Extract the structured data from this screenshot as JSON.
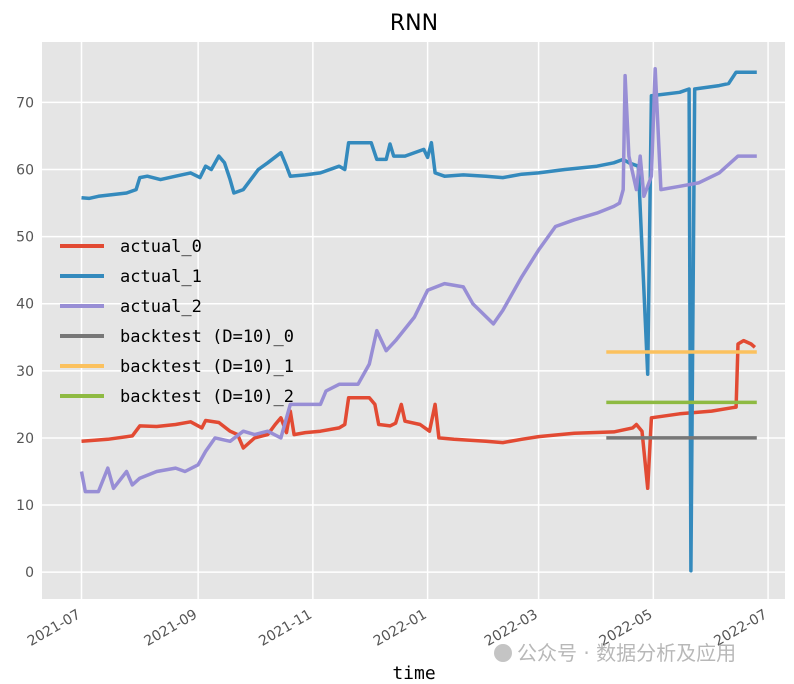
{
  "chart_data": {
    "type": "line",
    "title": "RNN",
    "xlabel": "time",
    "ylabel": "",
    "ylim": [
      -4,
      79
    ],
    "xlim": [
      "2021-06-10",
      "2022-07-10"
    ],
    "x_ticks": [
      "2021-07",
      "2021-09",
      "2021-11",
      "2022-01",
      "2022-03",
      "2022-05",
      "2022-07"
    ],
    "y_ticks": [
      0,
      10,
      20,
      30,
      40,
      50,
      60,
      70
    ],
    "grid": true,
    "legend_position": "center-left",
    "series": [
      {
        "name": "actual_0",
        "color": "#E24A33",
        "points": [
          [
            "2021-07-01",
            19.5
          ],
          [
            "2021-07-15",
            19.8
          ],
          [
            "2021-07-28",
            20.3
          ],
          [
            "2021-08-01",
            21.8
          ],
          [
            "2021-08-10",
            21.7
          ],
          [
            "2021-08-20",
            22.0
          ],
          [
            "2021-08-28",
            22.4
          ],
          [
            "2021-09-03",
            21.5
          ],
          [
            "2021-09-05",
            22.6
          ],
          [
            "2021-09-12",
            22.3
          ],
          [
            "2021-09-18",
            21.0
          ],
          [
            "2021-09-22",
            20.5
          ],
          [
            "2021-09-25",
            18.5
          ],
          [
            "2021-10-01",
            20.0
          ],
          [
            "2021-10-08",
            20.5
          ],
          [
            "2021-10-12",
            22.0
          ],
          [
            "2021-10-15",
            23.0
          ],
          [
            "2021-10-18",
            20.8
          ],
          [
            "2021-10-20",
            24.0
          ],
          [
            "2021-10-22",
            20.5
          ],
          [
            "2021-10-28",
            20.8
          ],
          [
            "2021-11-05",
            21.0
          ],
          [
            "2021-11-15",
            21.5
          ],
          [
            "2021-11-18",
            22.0
          ],
          [
            "2021-11-20",
            26.0
          ],
          [
            "2021-12-01",
            26.0
          ],
          [
            "2021-12-04",
            25.0
          ],
          [
            "2021-12-06",
            22.0
          ],
          [
            "2021-12-12",
            21.8
          ],
          [
            "2021-12-15",
            22.2
          ],
          [
            "2021-12-18",
            25.0
          ],
          [
            "2021-12-20",
            22.5
          ],
          [
            "2021-12-28",
            22.0
          ],
          [
            "2022-01-02",
            21.0
          ],
          [
            "2022-01-05",
            25.0
          ],
          [
            "2022-01-07",
            20.0
          ],
          [
            "2022-01-15",
            19.8
          ],
          [
            "2022-02-01",
            19.5
          ],
          [
            "2022-02-10",
            19.3
          ],
          [
            "2022-02-20",
            19.8
          ],
          [
            "2022-03-01",
            20.2
          ],
          [
            "2022-03-20",
            20.7
          ],
          [
            "2022-04-10",
            20.9
          ],
          [
            "2022-04-20",
            21.5
          ],
          [
            "2022-04-22",
            22.0
          ],
          [
            "2022-04-25",
            21.0
          ],
          [
            "2022-04-28",
            12.5
          ],
          [
            "2022-04-30",
            23.0
          ],
          [
            "2022-05-15",
            23.6
          ],
          [
            "2022-06-01",
            24.0
          ],
          [
            "2022-06-12",
            24.5
          ],
          [
            "2022-06-14",
            24.6
          ],
          [
            "2022-06-15",
            34.0
          ],
          [
            "2022-06-18",
            34.5
          ],
          [
            "2022-06-22",
            34.0
          ],
          [
            "2022-06-24",
            33.5
          ]
        ]
      },
      {
        "name": "actual_1",
        "color": "#348ABD",
        "points": [
          [
            "2021-07-01",
            55.8
          ],
          [
            "2021-07-05",
            55.7
          ],
          [
            "2021-07-10",
            56.0
          ],
          [
            "2021-07-25",
            56.5
          ],
          [
            "2021-07-30",
            57.0
          ],
          [
            "2021-08-01",
            58.8
          ],
          [
            "2021-08-05",
            59.0
          ],
          [
            "2021-08-12",
            58.5
          ],
          [
            "2021-08-20",
            59.0
          ],
          [
            "2021-08-28",
            59.5
          ],
          [
            "2021-09-02",
            58.8
          ],
          [
            "2021-09-05",
            60.5
          ],
          [
            "2021-09-08",
            60.0
          ],
          [
            "2021-09-12",
            62.0
          ],
          [
            "2021-09-15",
            61.0
          ],
          [
            "2021-09-18",
            58.5
          ],
          [
            "2021-09-20",
            56.5
          ],
          [
            "2021-09-25",
            57.0
          ],
          [
            "2021-10-03",
            60.0
          ],
          [
            "2021-10-08",
            61.0
          ],
          [
            "2021-10-15",
            62.5
          ],
          [
            "2021-10-18",
            60.5
          ],
          [
            "2021-10-20",
            59.0
          ],
          [
            "2021-10-28",
            59.2
          ],
          [
            "2021-11-05",
            59.5
          ],
          [
            "2021-11-15",
            60.5
          ],
          [
            "2021-11-18",
            60.0
          ],
          [
            "2021-11-20",
            64.0
          ],
          [
            "2021-12-02",
            64.0
          ],
          [
            "2021-12-05",
            61.5
          ],
          [
            "2021-12-10",
            61.5
          ],
          [
            "2021-12-12",
            63.8
          ],
          [
            "2021-12-14",
            62.0
          ],
          [
            "2021-12-20",
            62.0
          ],
          [
            "2021-12-30",
            63.0
          ],
          [
            "2022-01-01",
            61.8
          ],
          [
            "2022-01-03",
            64.0
          ],
          [
            "2022-01-05",
            59.5
          ],
          [
            "2022-01-10",
            59.0
          ],
          [
            "2022-01-20",
            59.2
          ],
          [
            "2022-02-01",
            59.0
          ],
          [
            "2022-02-10",
            58.8
          ],
          [
            "2022-02-20",
            59.3
          ],
          [
            "2022-03-01",
            59.5
          ],
          [
            "2022-03-15",
            60.0
          ],
          [
            "2022-04-01",
            60.5
          ],
          [
            "2022-04-10",
            61.0
          ],
          [
            "2022-04-15",
            61.5
          ],
          [
            "2022-04-18",
            61.0
          ],
          [
            "2022-04-23",
            60.5
          ],
          [
            "2022-04-28",
            29.5
          ],
          [
            "2022-04-30",
            71.0
          ],
          [
            "2022-05-15",
            71.5
          ],
          [
            "2022-05-20",
            72.0
          ],
          [
            "2022-05-21",
            0.2
          ],
          [
            "2022-05-23",
            72.0
          ],
          [
            "2022-06-05",
            72.5
          ],
          [
            "2022-06-10",
            72.8
          ],
          [
            "2022-06-14",
            74.5
          ],
          [
            "2022-06-25",
            74.5
          ]
        ]
      },
      {
        "name": "actual_2",
        "color": "#988ED5",
        "points": [
          [
            "2021-07-01",
            15.0
          ],
          [
            "2021-07-03",
            12.0
          ],
          [
            "2021-07-10",
            12.0
          ],
          [
            "2021-07-15",
            15.5
          ],
          [
            "2021-07-18",
            12.5
          ],
          [
            "2021-07-25",
            15.0
          ],
          [
            "2021-07-28",
            13.0
          ],
          [
            "2021-08-01",
            14.0
          ],
          [
            "2021-08-10",
            15.0
          ],
          [
            "2021-08-20",
            15.5
          ],
          [
            "2021-08-25",
            15.0
          ],
          [
            "2021-09-01",
            16.0
          ],
          [
            "2021-09-05",
            18.0
          ],
          [
            "2021-09-10",
            20.0
          ],
          [
            "2021-09-18",
            19.5
          ],
          [
            "2021-09-25",
            21.0
          ],
          [
            "2021-10-01",
            20.5
          ],
          [
            "2021-10-08",
            21.0
          ],
          [
            "2021-10-15",
            20.0
          ],
          [
            "2021-10-20",
            25.0
          ],
          [
            "2021-11-05",
            25.0
          ],
          [
            "2021-11-08",
            27.0
          ],
          [
            "2021-11-15",
            28.0
          ],
          [
            "2021-11-25",
            28.0
          ],
          [
            "2021-12-01",
            31.0
          ],
          [
            "2021-12-05",
            36.0
          ],
          [
            "2021-12-10",
            33.0
          ],
          [
            "2021-12-15",
            34.5
          ],
          [
            "2021-12-25",
            38.0
          ],
          [
            "2022-01-01",
            42.0
          ],
          [
            "2022-01-10",
            43.0
          ],
          [
            "2022-01-20",
            42.5
          ],
          [
            "2022-01-25",
            40.0
          ],
          [
            "2022-02-05",
            37.0
          ],
          [
            "2022-02-10",
            39.0
          ],
          [
            "2022-02-20",
            44.0
          ],
          [
            "2022-03-01",
            48.0
          ],
          [
            "2022-03-10",
            51.5
          ],
          [
            "2022-03-20",
            52.5
          ],
          [
            "2022-04-01",
            53.5
          ],
          [
            "2022-04-10",
            54.5
          ],
          [
            "2022-04-13",
            55.0
          ],
          [
            "2022-04-15",
            57.0
          ],
          [
            "2022-04-16",
            74.0
          ],
          [
            "2022-04-18",
            62.0
          ],
          [
            "2022-04-22",
            57.0
          ],
          [
            "2022-04-24",
            62.0
          ],
          [
            "2022-04-26",
            56.0
          ],
          [
            "2022-04-30",
            59.0
          ],
          [
            "2022-05-02",
            75.0
          ],
          [
            "2022-05-05",
            57.0
          ],
          [
            "2022-05-15",
            57.5
          ],
          [
            "2022-05-25",
            58.0
          ],
          [
            "2022-06-05",
            59.5
          ],
          [
            "2022-06-15",
            62.0
          ],
          [
            "2022-06-25",
            62.0
          ]
        ]
      },
      {
        "name": "backtest (D=10)_0",
        "color": "#777777",
        "points": [
          [
            "2022-04-06",
            20.0
          ],
          [
            "2022-06-25",
            20.0
          ]
        ]
      },
      {
        "name": "backtest (D=10)_1",
        "color": "#FBC15E",
        "points": [
          [
            "2022-04-06",
            32.8
          ],
          [
            "2022-06-25",
            32.8
          ]
        ]
      },
      {
        "name": "backtest (D=10)_2",
        "color": "#8EBA42",
        "points": [
          [
            "2022-04-06",
            25.3
          ],
          [
            "2022-06-25",
            25.3
          ]
        ]
      }
    ]
  },
  "watermark": "公众号 · 数据分析及应用"
}
